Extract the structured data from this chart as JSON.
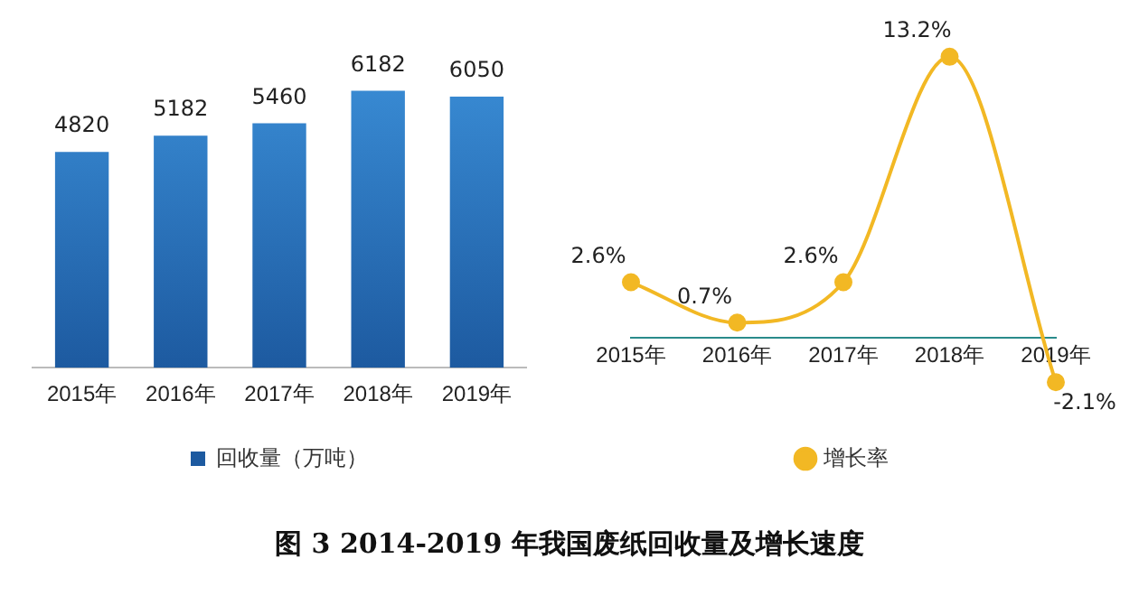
{
  "chart_data": [
    {
      "type": "bar",
      "categories": [
        "2015年",
        "2016年",
        "2017年",
        "2018年",
        "2019年"
      ],
      "series": [
        {
          "name": "回收量（万吨）",
          "color": "#3b8fd8",
          "values": [
            4820,
            5182,
            5460,
            6182,
            6050
          ]
        }
      ],
      "data_labels": true,
      "legend": "bottom",
      "grid": false,
      "annotations": [
        "图 3 2014-2019 年我国废纸回收量及增长速度"
      ]
    },
    {
      "type": "line",
      "categories": [
        "2015年",
        "2016年",
        "2017年",
        "2018年",
        "2019年"
      ],
      "series": [
        {
          "name": "增长率",
          "color": "#f2b824",
          "values": [
            2.6,
            0.7,
            2.6,
            13.2,
            -2.1
          ],
          "value_labels": [
            "2.6%",
            "0.7%",
            "2.6%",
            "13.2%",
            "-2.1%"
          ]
        }
      ],
      "legend": "bottom",
      "grid": false,
      "marker": "circle"
    }
  ]
}
